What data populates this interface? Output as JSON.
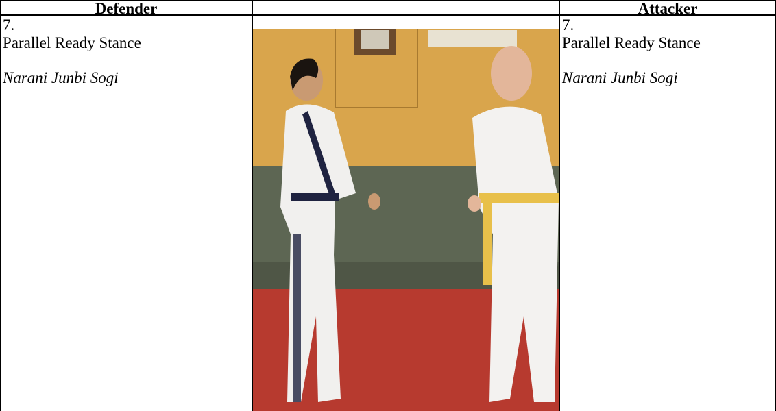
{
  "header": {
    "defender": "Defender",
    "attacker": "Attacker"
  },
  "defender": {
    "number": "7.",
    "stance": "Parallel Ready Stance",
    "korean": "Narani Junbi Sogi"
  },
  "attacker": {
    "number": "7.",
    "stance": "Parallel Ready Stance",
    "korean": "Narani Junbi Sogi"
  }
}
